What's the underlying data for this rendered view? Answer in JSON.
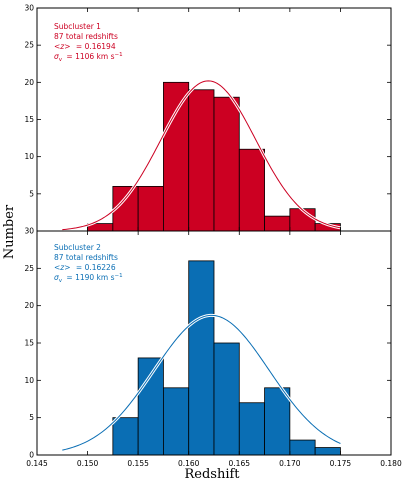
{
  "chart_data": [
    {
      "type": "bar",
      "panel": "top",
      "bin_edges": [
        0.1475,
        0.15,
        0.1525,
        0.155,
        0.1575,
        0.16,
        0.1625,
        0.165,
        0.1675,
        0.17,
        0.1725,
        0.175
      ],
      "values": [
        0,
        1,
        6,
        6,
        20,
        19,
        18,
        11,
        2,
        3,
        1
      ],
      "fit_curve": {
        "mean": 0.16194,
        "peak": 20.2,
        "sigma_z": 0.0047
      },
      "xlim": [
        0.145,
        0.18
      ],
      "ylim": [
        0,
        25
      ],
      "yticks": [
        "5",
        "10",
        "15",
        "20",
        "25",
        "30"
      ],
      "ylabel": "Number",
      "colors": {
        "bar": "#cc0022",
        "line": "#cc0022",
        "annotation": "#cc0022"
      },
      "annotation": [
        "Subcluster 1",
        "87 total redshifts",
        "<z> = 0.16194",
        "σ_v = 1106 km s⁻¹"
      ],
      "annotation_parts": {
        "sym_z": "<z>",
        "val_z": "= 0.16194",
        "sym_sigma": "σ",
        "sub_sigma": "v",
        "val_sigma": "= 1106 km s",
        "sup_sigma": "−1"
      }
    },
    {
      "type": "bar",
      "panel": "bottom",
      "bin_edges": [
        0.1475,
        0.15,
        0.1525,
        0.155,
        0.1575,
        0.16,
        0.1625,
        0.165,
        0.1675,
        0.17,
        0.1725,
        0.175
      ],
      "values": [
        0,
        0,
        5,
        13,
        9,
        26,
        15,
        7,
        9,
        2,
        1
      ],
      "fit_curve": {
        "mean": 0.16226,
        "peak": 18.7,
        "sigma_z": 0.0057
      },
      "xlim": [
        0.145,
        0.18
      ],
      "ylim": [
        0,
        30
      ],
      "yticks": [
        "0",
        "5",
        "10",
        "15",
        "20",
        "25",
        "30"
      ],
      "xlabel": "Redshift",
      "colors": {
        "bar": "#0a6eb4",
        "line": "#0a6eb4",
        "annotation": "#0a6eb4"
      },
      "annotation": [
        "Subcluster 2",
        "87 total redshifts",
        "<z> = 0.16226",
        "σ_v = 1190 km s⁻¹"
      ],
      "annotation_parts": {
        "sym_z": "<z>",
        "val_z": "= 0.16226",
        "sym_sigma": "σ",
        "sub_sigma": "v",
        "val_sigma": "= 1190 km s",
        "sup_sigma": "−1"
      }
    }
  ],
  "shared": {
    "xticks": [
      "0.145",
      "0.150",
      "0.155",
      "0.160",
      "0.165",
      "0.170",
      "0.175",
      "0.180"
    ],
    "ylabel": "Number",
    "xlabel": "Redshift"
  }
}
